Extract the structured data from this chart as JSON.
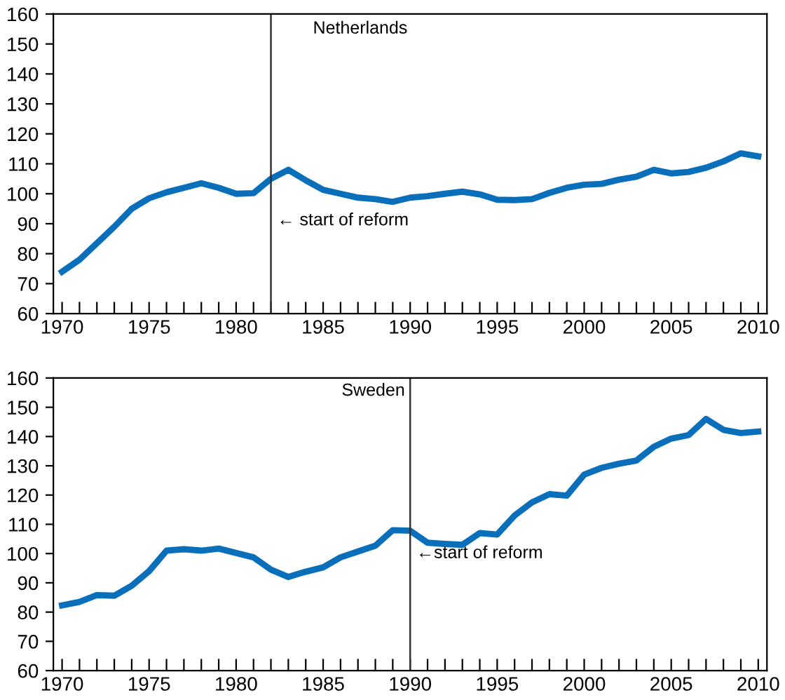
{
  "chart_data": [
    {
      "type": "line",
      "title": "Netherlands",
      "x": [
        1970,
        1971,
        1972,
        1973,
        1974,
        1975,
        1976,
        1977,
        1978,
        1979,
        1980,
        1981,
        1982,
        1983,
        1984,
        1985,
        1986,
        1987,
        1988,
        1989,
        1990,
        1991,
        1992,
        1993,
        1994,
        1995,
        1996,
        1997,
        1998,
        1999,
        2000,
        2001,
        2002,
        2003,
        2004,
        2005,
        2006,
        2007,
        2008,
        2009,
        2010
      ],
      "series": [
        {
          "color": "#0a6fba",
          "values": [
            74,
            78,
            83.5,
            89,
            95,
            98.5,
            100.5,
            102,
            103.5,
            102,
            100,
            100.2,
            105,
            108,
            104.5,
            101.3,
            100,
            98.7,
            98.2,
            97.3,
            98.7,
            99.2,
            100,
            100.7,
            99.8,
            98,
            97.9,
            98.2,
            100.3,
            102,
            103,
            103.3,
            104.7,
            105.7,
            108,
            106.8,
            107.3,
            108.7,
            110.8,
            113.5,
            112.5
          ]
        }
      ],
      "ref_lines": [
        {
          "axis": "x",
          "value": 1982,
          "label": "← start of reform",
          "color": "#333333"
        }
      ],
      "xlim": [
        1969.5,
        2010.5
      ],
      "ylim": [
        60,
        160
      ],
      "yticks": [
        60,
        70,
        80,
        90,
        100,
        110,
        120,
        130,
        140,
        150,
        160
      ],
      "xticks": [
        1970,
        {
          "value": 1971,
          "label": null
        },
        {
          "value": 1972,
          "label": null
        },
        {
          "value": 1973,
          "label": null
        },
        {
          "value": 1974,
          "label": null
        },
        1975,
        {
          "value": 1976,
          "label": null
        },
        {
          "value": 1977,
          "label": null
        },
        {
          "value": 1978,
          "label": null
        },
        {
          "value": 1979,
          "label": null
        },
        1980,
        {
          "value": 1981,
          "label": null
        },
        {
          "value": 1982,
          "label": null
        },
        {
          "value": 1983,
          "label": null
        },
        {
          "value": 1984,
          "label": null
        },
        1985,
        {
          "value": 1986,
          "label": null
        },
        {
          "value": 1987,
          "label": null
        },
        {
          "value": 1988,
          "label": null
        },
        {
          "value": 1989,
          "label": null
        },
        1990,
        {
          "value": 1991,
          "label": null
        },
        {
          "value": 1992,
          "label": null
        },
        {
          "value": 1993,
          "label": null
        },
        {
          "value": 1994,
          "label": null
        },
        1995,
        {
          "value": 1996,
          "label": null
        },
        {
          "value": 1997,
          "label": null
        },
        {
          "value": 1998,
          "label": null
        },
        {
          "value": 1999,
          "label": null
        },
        2000,
        {
          "value": 2001,
          "label": null
        },
        {
          "value": 2002,
          "label": null
        },
        {
          "value": 2003,
          "label": null
        },
        {
          "value": 2004,
          "label": null
        },
        2005,
        {
          "value": 2006,
          "label": null
        },
        {
          "value": 2007,
          "label": null
        },
        {
          "value": 2008,
          "label": null
        },
        {
          "value": 2009,
          "label": null
        },
        2010
      ],
      "grid": false,
      "legend": false,
      "marker": "none",
      "line_style": "solid"
    },
    {
      "type": "line",
      "title": "Sweden",
      "x": [
        1970,
        1971,
        1972,
        1973,
        1974,
        1975,
        1976,
        1977,
        1978,
        1979,
        1980,
        1981,
        1982,
        1983,
        1984,
        1985,
        1986,
        1987,
        1988,
        1989,
        1990,
        1991,
        1992,
        1993,
        1994,
        1995,
        1996,
        1997,
        1998,
        1999,
        2000,
        2001,
        2002,
        2003,
        2004,
        2005,
        2006,
        2007,
        2008,
        2009,
        2010
      ],
      "series": [
        {
          "color": "#0a6fba",
          "values": [
            82.3,
            83.5,
            85.8,
            85.6,
            89,
            94,
            101,
            101.5,
            101,
            101.7,
            100.2,
            98.7,
            94.5,
            92,
            93.8,
            95.3,
            98.7,
            100.7,
            102.7,
            108,
            107.8,
            103.7,
            103.3,
            103,
            107,
            106.5,
            113,
            117.5,
            120.3,
            119.8,
            127,
            129.3,
            130.7,
            131.8,
            136.5,
            139.3,
            140.5,
            146,
            142.3,
            141.2,
            141.7
          ]
        }
      ],
      "ref_lines": [
        {
          "axis": "x",
          "value": 1990,
          "label": "←start of reform",
          "color": "#333333"
        }
      ],
      "xlim": [
        1969.5,
        2010.5
      ],
      "ylim": [
        60,
        160
      ],
      "yticks": [
        60,
        70,
        80,
        90,
        100,
        110,
        120,
        130,
        140,
        150,
        160
      ],
      "xticks": [
        1970,
        {
          "value": 1971,
          "label": null
        },
        {
          "value": 1972,
          "label": null
        },
        {
          "value": 1973,
          "label": null
        },
        {
          "value": 1974,
          "label": null
        },
        1975,
        {
          "value": 1976,
          "label": null
        },
        {
          "value": 1977,
          "label": null
        },
        {
          "value": 1978,
          "label": null
        },
        {
          "value": 1979,
          "label": null
        },
        1980,
        {
          "value": 1981,
          "label": null
        },
        {
          "value": 1982,
          "label": null
        },
        {
          "value": 1983,
          "label": null
        },
        {
          "value": 1984,
          "label": null
        },
        1985,
        {
          "value": 1986,
          "label": null
        },
        {
          "value": 1987,
          "label": null
        },
        {
          "value": 1988,
          "label": null
        },
        {
          "value": 1989,
          "label": null
        },
        1990,
        {
          "value": 1991,
          "label": null
        },
        {
          "value": 1992,
          "label": null
        },
        {
          "value": 1993,
          "label": null
        },
        {
          "value": 1994,
          "label": null
        },
        1995,
        {
          "value": 1996,
          "label": null
        },
        {
          "value": 1997,
          "label": null
        },
        {
          "value": 1998,
          "label": null
        },
        {
          "value": 1999,
          "label": null
        },
        2000,
        {
          "value": 2001,
          "label": null
        },
        {
          "value": 2002,
          "label": null
        },
        {
          "value": 2003,
          "label": null
        },
        {
          "value": 2004,
          "label": null
        },
        2005,
        {
          "value": 2006,
          "label": null
        },
        {
          "value": 2007,
          "label": null
        },
        {
          "value": 2008,
          "label": null
        },
        {
          "value": 2009,
          "label": null
        },
        2010
      ],
      "grid": false,
      "legend": false,
      "marker": "none",
      "line_style": "solid"
    }
  ]
}
